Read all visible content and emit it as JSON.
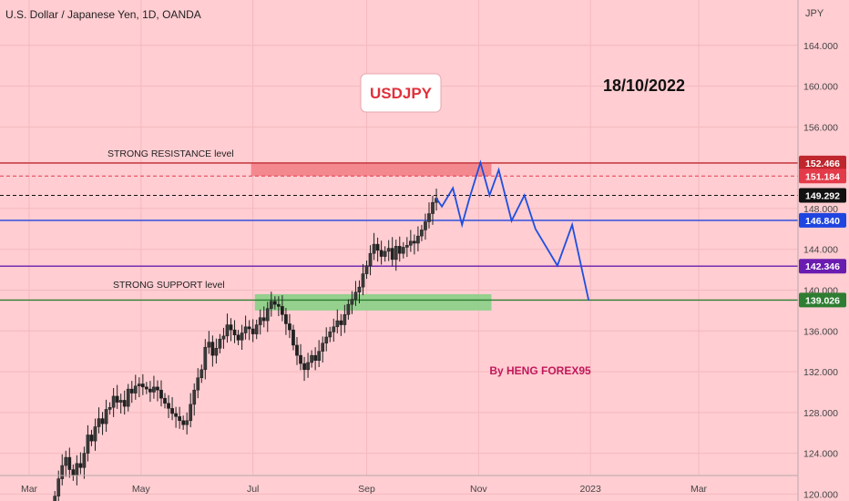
{
  "header": {
    "symbol_title": "U.S. Dollar / Japanese Yen, 1D, OANDA"
  },
  "chart_data": {
    "type": "candlestick",
    "currency_label": "JPY",
    "ylim": [
      119.5,
      168
    ],
    "y_ticks": [
      {
        "value": 164,
        "label": "164.000"
      },
      {
        "value": 160,
        "label": "160.000"
      },
      {
        "value": 156,
        "label": "156.000"
      },
      {
        "value": 148,
        "label": "148.000"
      },
      {
        "value": 144,
        "label": "144.000"
      },
      {
        "value": 140,
        "label": "140.000"
      },
      {
        "value": 136,
        "label": "136.000"
      },
      {
        "value": 132,
        "label": "132.000"
      },
      {
        "value": 128,
        "label": "128.000"
      },
      {
        "value": 124,
        "label": "124.000"
      },
      {
        "value": 120,
        "label": "120.000"
      }
    ],
    "x_ticks": [
      {
        "day": 0,
        "label": "Mar"
      },
      {
        "day": 61,
        "label": "May"
      },
      {
        "day": 122,
        "label": "Jul"
      },
      {
        "day": 184,
        "label": "Sep"
      },
      {
        "day": 245,
        "label": "Nov"
      },
      {
        "day": 306,
        "label": "2023"
      },
      {
        "day": 365,
        "label": "Mar"
      }
    ],
    "start_date": "2022-03-01",
    "closes": [
      {
        "day": 14,
        "value": 119.8
      },
      {
        "day": 16,
        "value": 121.5
      },
      {
        "day": 18,
        "value": 122.8
      },
      {
        "day": 20,
        "value": 123.6
      },
      {
        "day": 22,
        "value": 122.4
      },
      {
        "day": 24,
        "value": 121.8
      },
      {
        "day": 26,
        "value": 123.0
      },
      {
        "day": 28,
        "value": 122.6
      },
      {
        "day": 30,
        "value": 124.0
      },
      {
        "day": 32,
        "value": 125.8
      },
      {
        "day": 34,
        "value": 125.2
      },
      {
        "day": 36,
        "value": 126.6
      },
      {
        "day": 38,
        "value": 127.4
      },
      {
        "day": 40,
        "value": 126.9
      },
      {
        "day": 42,
        "value": 128.3
      },
      {
        "day": 44,
        "value": 128.5
      },
      {
        "day": 46,
        "value": 129.6
      },
      {
        "day": 48,
        "value": 129.0
      },
      {
        "day": 50,
        "value": 129.2
      },
      {
        "day": 52,
        "value": 128.6
      },
      {
        "day": 54,
        "value": 130.3
      },
      {
        "day": 56,
        "value": 129.9
      },
      {
        "day": 58,
        "value": 130.6
      },
      {
        "day": 60,
        "value": 130.8
      },
      {
        "day": 62,
        "value": 130.5
      },
      {
        "day": 64,
        "value": 130.3
      },
      {
        "day": 66,
        "value": 130.0
      },
      {
        "day": 68,
        "value": 130.5
      },
      {
        "day": 70,
        "value": 130.2
      },
      {
        "day": 72,
        "value": 129.4
      },
      {
        "day": 74,
        "value": 128.9
      },
      {
        "day": 76,
        "value": 128.4
      },
      {
        "day": 78,
        "value": 127.9
      },
      {
        "day": 80,
        "value": 127.6
      },
      {
        "day": 82,
        "value": 127.2
      },
      {
        "day": 84,
        "value": 126.8
      },
      {
        "day": 86,
        "value": 127.2
      },
      {
        "day": 88,
        "value": 128.8
      },
      {
        "day": 90,
        "value": 130.2
      },
      {
        "day": 92,
        "value": 131.4
      },
      {
        "day": 94,
        "value": 132.2
      },
      {
        "day": 96,
        "value": 134.4
      },
      {
        "day": 98,
        "value": 134.9
      },
      {
        "day": 100,
        "value": 133.6
      },
      {
        "day": 102,
        "value": 134.3
      },
      {
        "day": 104,
        "value": 135.2
      },
      {
        "day": 106,
        "value": 135.5
      },
      {
        "day": 108,
        "value": 136.6
      },
      {
        "day": 110,
        "value": 136.1
      },
      {
        "day": 112,
        "value": 135.6
      },
      {
        "day": 114,
        "value": 135.1
      },
      {
        "day": 116,
        "value": 135.8
      },
      {
        "day": 118,
        "value": 136.4
      },
      {
        "day": 120,
        "value": 136.2
      },
      {
        "day": 122,
        "value": 135.7
      },
      {
        "day": 124,
        "value": 136.6
      },
      {
        "day": 126,
        "value": 137.3
      },
      {
        "day": 128,
        "value": 137.0
      },
      {
        "day": 130,
        "value": 138.2
      },
      {
        "day": 132,
        "value": 138.9
      },
      {
        "day": 134,
        "value": 138.6
      },
      {
        "day": 136,
        "value": 138.4
      },
      {
        "day": 138,
        "value": 137.6
      },
      {
        "day": 140,
        "value": 136.7
      },
      {
        "day": 142,
        "value": 136.1
      },
      {
        "day": 144,
        "value": 134.6
      },
      {
        "day": 146,
        "value": 133.6
      },
      {
        "day": 148,
        "value": 132.8
      },
      {
        "day": 150,
        "value": 132.2
      },
      {
        "day": 152,
        "value": 132.9
      },
      {
        "day": 154,
        "value": 133.6
      },
      {
        "day": 156,
        "value": 133.1
      },
      {
        "day": 158,
        "value": 134.0
      },
      {
        "day": 160,
        "value": 134.8
      },
      {
        "day": 162,
        "value": 135.4
      },
      {
        "day": 164,
        "value": 135.9
      },
      {
        "day": 166,
        "value": 136.4
      },
      {
        "day": 168,
        "value": 137.0
      },
      {
        "day": 170,
        "value": 136.6
      },
      {
        "day": 172,
        "value": 137.6
      },
      {
        "day": 174,
        "value": 138.6
      },
      {
        "day": 176,
        "value": 139.1
      },
      {
        "day": 178,
        "value": 139.8
      },
      {
        "day": 180,
        "value": 140.3
      },
      {
        "day": 182,
        "value": 141.6
      },
      {
        "day": 184,
        "value": 142.4
      },
      {
        "day": 186,
        "value": 143.6
      },
      {
        "day": 188,
        "value": 144.5
      },
      {
        "day": 190,
        "value": 143.9
      },
      {
        "day": 192,
        "value": 143.3
      },
      {
        "day": 194,
        "value": 143.8
      },
      {
        "day": 196,
        "value": 144.1
      },
      {
        "day": 198,
        "value": 143.0
      },
      {
        "day": 200,
        "value": 144.3
      },
      {
        "day": 202,
        "value": 143.6
      },
      {
        "day": 204,
        "value": 144.2
      },
      {
        "day": 206,
        "value": 144.4
      },
      {
        "day": 208,
        "value": 144.8
      },
      {
        "day": 210,
        "value": 144.6
      },
      {
        "day": 212,
        "value": 145.3
      },
      {
        "day": 214,
        "value": 145.9
      },
      {
        "day": 216,
        "value": 146.7
      },
      {
        "day": 218,
        "value": 147.5
      },
      {
        "day": 220,
        "value": 148.6
      },
      {
        "day": 222,
        "value": 149.0
      }
    ],
    "series": [
      {
        "name": "projection",
        "color": "#1e4fe0",
        "points": [
          {
            "day": 222,
            "value": 149.0
          },
          {
            "day": 225,
            "value": 148.2
          },
          {
            "day": 231,
            "value": 150.0
          },
          {
            "day": 236,
            "value": 146.4
          },
          {
            "day": 240,
            "value": 149.0
          },
          {
            "day": 246,
            "value": 152.5
          },
          {
            "day": 251,
            "value": 149.3
          },
          {
            "day": 256,
            "value": 151.8
          },
          {
            "day": 263,
            "value": 146.8
          },
          {
            "day": 270,
            "value": 149.3
          },
          {
            "day": 276,
            "value": 146.0
          },
          {
            "day": 288,
            "value": 142.4
          },
          {
            "day": 296,
            "value": 146.4
          },
          {
            "day": 305,
            "value": 139.0
          }
        ]
      }
    ],
    "levels": [
      {
        "value": 152.466,
        "label": "152.466",
        "color": "#c0262d",
        "style": "solid"
      },
      {
        "value": 151.184,
        "label": "151.184",
        "color": "#e43b4a",
        "style": "dashed"
      },
      {
        "value": 149.292,
        "label": "149.292",
        "color": "#111111",
        "style": "dashed"
      },
      {
        "value": 146.84,
        "label": "146.840",
        "color": "#1f45e0",
        "style": "solid"
      },
      {
        "value": 142.346,
        "label": "142.346",
        "color": "#6a1bb0",
        "style": "solid"
      },
      {
        "value": 139.026,
        "label": "139.026",
        "color": "#2e7d32",
        "style": "solid"
      }
    ],
    "zones": [
      {
        "name": "resistance-zone",
        "day_from": 121,
        "day_to": 252,
        "top": 152.4,
        "bottom": 151.2,
        "color": "#f2848a"
      },
      {
        "name": "support-zone",
        "day_from": 123,
        "day_to": 252,
        "top": 139.6,
        "bottom": 138.0,
        "color": "#8fd08a"
      }
    ],
    "annotations": {
      "resistance_label": "STRONG RESISTANCE level",
      "support_label": "STRONG SUPPORT level",
      "symbol_box": "USDJPY",
      "date_text": "18/10/2022",
      "credit": "By HENG FOREX95"
    },
    "colors": {
      "background": "#ffcdd2",
      "up": "#1f1f1f",
      "down": "#1f1f1f",
      "symbol_text": "#e0303a",
      "credit_text": "#c2185b",
      "axis_text": "#444444"
    }
  }
}
